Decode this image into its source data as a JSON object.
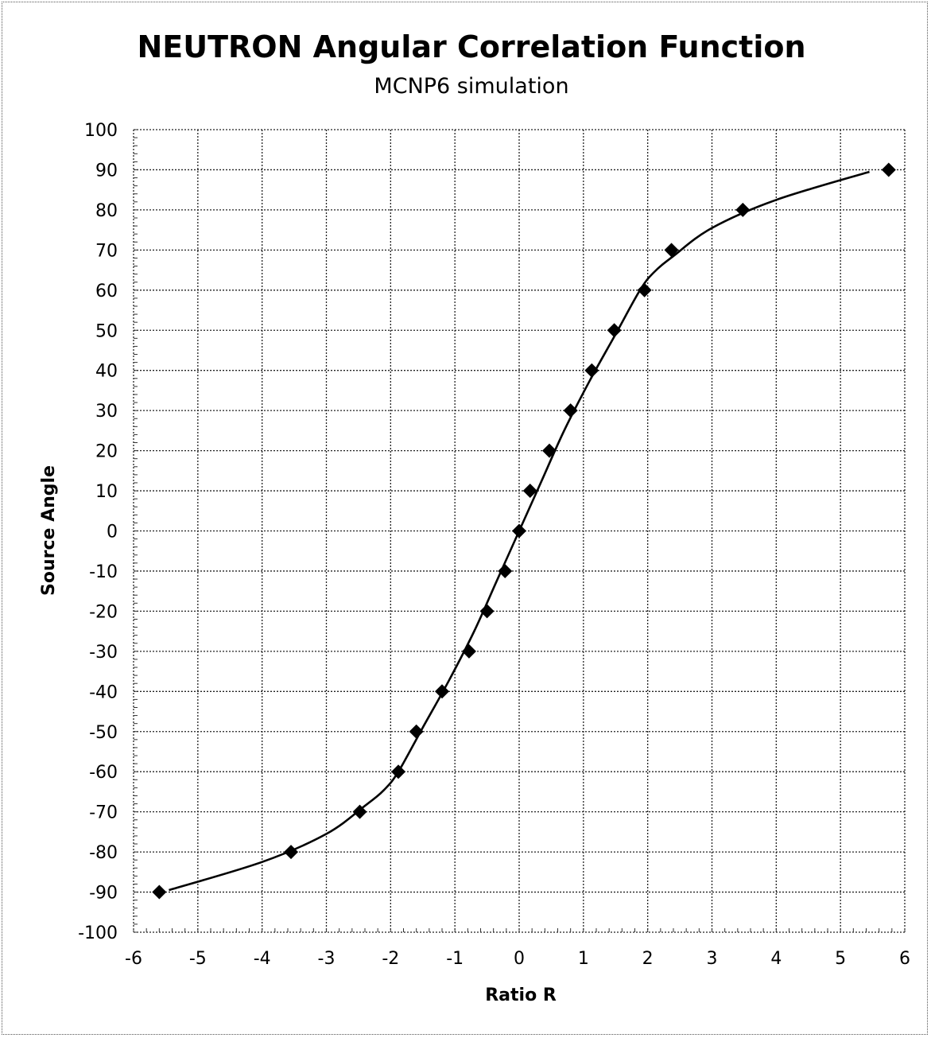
{
  "chart_data": {
    "type": "scatter",
    "title": "NEUTRON Angular Correlation Function",
    "subtitle": "MCNP6 simulation",
    "xlabel": "Ratio R",
    "ylabel": "Source Angle",
    "xlim": [
      -6,
      6
    ],
    "ylim": [
      -100,
      100
    ],
    "x_ticks": [
      -6,
      -5,
      -4,
      -3,
      -2,
      -1,
      0,
      1,
      2,
      3,
      4,
      5,
      6
    ],
    "y_ticks": [
      100,
      90,
      80,
      70,
      60,
      50,
      40,
      30,
      20,
      10,
      0,
      -10,
      -20,
      -30,
      -40,
      -50,
      -60,
      -70,
      -80,
      -90,
      -100
    ],
    "grid": true,
    "marker": "diamond",
    "series": [
      {
        "x": [
          -5.6,
          -3.55,
          -2.48,
          -1.88,
          -1.6,
          -1.2,
          -0.78,
          -0.5,
          -0.22,
          0,
          0.17,
          0.47,
          0.8,
          1.13,
          1.48,
          1.95,
          2.37,
          3.48,
          5.75
        ],
        "y": [
          -90,
          -80,
          -70,
          -60,
          -50,
          -40,
          -30,
          -20,
          -10,
          0,
          10,
          20,
          30,
          40,
          50,
          60,
          70,
          80,
          90
        ]
      }
    ],
    "trend_line": {
      "x": [
        -5.45,
        -4.0,
        -3.0,
        -2.4,
        -2.1,
        -1.88,
        -1.5,
        -1.1,
        -0.7,
        -0.35,
        0,
        0.35,
        0.7,
        1.1,
        1.5,
        1.88,
        2.1,
        2.4,
        3.0,
        4.0,
        5.45
      ],
      "y": [
        -89.5,
        -82.5,
        -75.5,
        -68.5,
        -64.5,
        -60,
        -49,
        -37.5,
        -25,
        -12.5,
        0,
        12.5,
        25,
        37.5,
        49,
        60,
        64.5,
        68.5,
        75.5,
        82.5,
        89.5
      ]
    }
  }
}
